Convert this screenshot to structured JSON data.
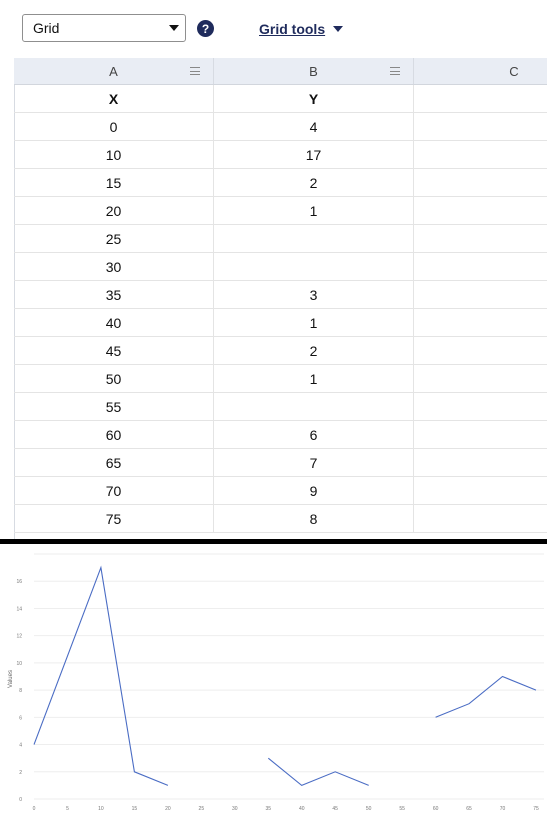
{
  "toolbar": {
    "select_value": "Grid",
    "help_label": "?",
    "grid_tools_label": "Grid tools"
  },
  "sheet": {
    "columns": [
      "A",
      "B",
      "C"
    ],
    "header_row": [
      "X",
      "Y",
      ""
    ],
    "rows": [
      [
        "0",
        "4"
      ],
      [
        "10",
        "17"
      ],
      [
        "15",
        "2"
      ],
      [
        "20",
        "1"
      ],
      [
        "25",
        ""
      ],
      [
        "30",
        ""
      ],
      [
        "35",
        "3"
      ],
      [
        "40",
        "1"
      ],
      [
        "45",
        "2"
      ],
      [
        "50",
        "1"
      ],
      [
        "55",
        ""
      ],
      [
        "60",
        "6"
      ],
      [
        "65",
        "7"
      ],
      [
        "70",
        "9"
      ],
      [
        "75",
        "8"
      ]
    ]
  },
  "colors": {
    "accent": "#1f2b5c",
    "line": "#4a6cc4",
    "header_bg": "#e9edf4"
  },
  "chart_data": {
    "type": "line",
    "ylabel": "Values",
    "x_ticks": [
      "0",
      "5",
      "10",
      "15",
      "20",
      "25",
      "30",
      "35",
      "40",
      "45",
      "50",
      "55",
      "60",
      "65",
      "70",
      "75"
    ],
    "y_ticks": [
      "0",
      "2",
      "4",
      "6",
      "8",
      "10",
      "12",
      "14",
      "16"
    ],
    "x": [
      0,
      10,
      15,
      20,
      25,
      30,
      35,
      40,
      45,
      50,
      55,
      60,
      65,
      70,
      75
    ],
    "series": [
      {
        "values": [
          4,
          17,
          2,
          1,
          null,
          null,
          3,
          1,
          2,
          1,
          null,
          6,
          7,
          9,
          8
        ]
      }
    ],
    "xlim": [
      0,
      75
    ],
    "ylim": [
      0,
      18
    ],
    "grid": true
  }
}
